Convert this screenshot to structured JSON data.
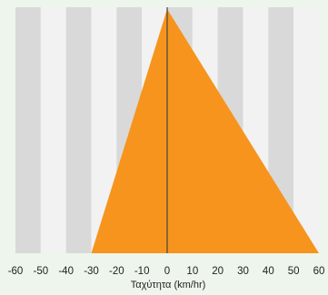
{
  "chart_data": {
    "type": "area",
    "title": "",
    "xlabel": "Ταχύτητα (km/hr)",
    "ylabel": "",
    "xlim": [
      -60,
      60
    ],
    "x_ticks": [
      -60,
      -50,
      -40,
      -30,
      -20,
      -10,
      0,
      10,
      20,
      30,
      40,
      50,
      60
    ],
    "tick_labels": [
      "-60",
      "-50",
      "-40",
      "-30",
      "-20",
      "-10",
      "0",
      "10",
      "20",
      "30",
      "40",
      "50",
      "60"
    ],
    "grid": "alternating vertical bands",
    "series": [
      {
        "x": [
          -30,
          0,
          60
        ],
        "y": [
          0,
          1,
          0
        ]
      }
    ],
    "colors": {
      "fill": "#f7941d",
      "band_dark": "#d9d9d9",
      "band_light": "#f2f2f2",
      "zero_line": "#444444",
      "background": "#eef5ec"
    }
  }
}
